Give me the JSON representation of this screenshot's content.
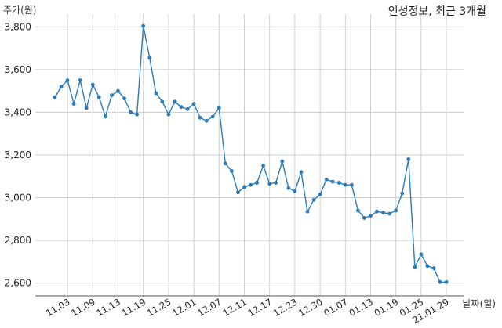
{
  "header": {
    "title": "인성정보, 최근 3개월",
    "ylabel": "주가(원)",
    "xlabel": "날짜(일)"
  },
  "chart_data": {
    "type": "line",
    "title": "인성정보, 최근 3개월",
    "xlabel": "날짜(일)",
    "ylabel": "주가(원)",
    "ylim": [
      2540,
      3860
    ],
    "yticks": [
      2600,
      2800,
      3000,
      3200,
      3400,
      3600,
      3800
    ],
    "ytick_labels": [
      "2,600",
      "2,800",
      "3,000",
      "3,200",
      "3,400",
      "3,600",
      "3,800"
    ],
    "xtick_indices": [
      2,
      6,
      10,
      14,
      18,
      22,
      26,
      30,
      34,
      38,
      42,
      46,
      50,
      54,
      58,
      62
    ],
    "xtick_labels": [
      "11.03",
      "11.09",
      "11.13",
      "11.19",
      "11.25",
      "12.01",
      "12.07",
      "12.11",
      "12.17",
      "12.23",
      "12.30",
      "01.07",
      "01.13",
      "01.19",
      "01.25",
      "21.01.29"
    ],
    "grid": true,
    "color": "#2b7bba",
    "series": [
      {
        "values": [
          3470,
          3520,
          3550,
          3440,
          3550,
          3420,
          3530,
          3470,
          3380,
          3480,
          3500,
          3465,
          3400,
          3390,
          3805,
          3655,
          3490,
          3450,
          3390,
          3450,
          3425,
          3415,
          3440,
          3375,
          3360,
          3380,
          3420,
          3160,
          3125,
          3025,
          3050,
          3060,
          3070,
          3150,
          3065,
          3070,
          3170,
          3045,
          3030,
          3120,
          2935,
          2990,
          3015,
          3085,
          3075,
          3070,
          3060,
          3060,
          2940,
          2905,
          2915,
          2935,
          2930,
          2925,
          2940,
          3020,
          3180,
          2675,
          2735,
          2680,
          2670,
          2605,
          2605
        ]
      }
    ]
  }
}
